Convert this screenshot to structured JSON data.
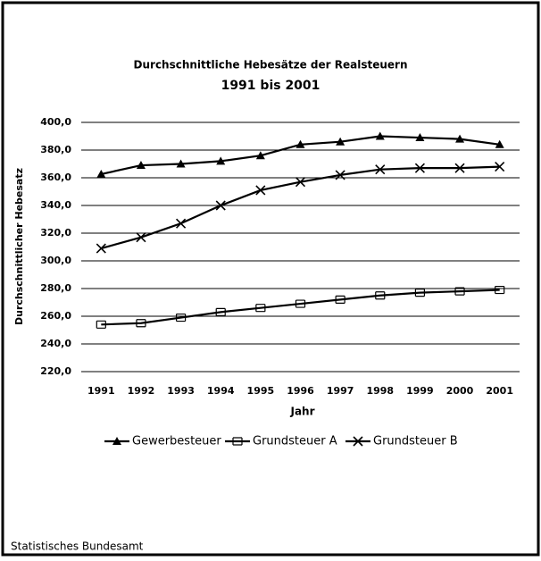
{
  "chart_data": {
    "type": "line",
    "title": "Durchschnittliche Hebesätze der Realsteuern",
    "subtitle": "1991 bis 2001",
    "x_label": "Jahr",
    "y_label": "Durchschnittlicher Hebesatz",
    "source": "Statistisches Bundesamt",
    "categories": [
      "1991",
      "1992",
      "1993",
      "1994",
      "1995",
      "1996",
      "1997",
      "1998",
      "1999",
      "2000",
      "2001"
    ],
    "series": [
      {
        "name": "Gewerbesteuer",
        "color": "#000000",
        "marker": "triangle",
        "values": [
          362.6,
          369,
          370,
          372,
          376,
          384,
          386,
          390,
          389,
          388,
          384
        ]
      },
      {
        "name": "Grundsteuer A",
        "color": "#000000",
        "marker": "box",
        "values": [
          254,
          255,
          259,
          263,
          266,
          269,
          272,
          275,
          277,
          278,
          279
        ]
      },
      {
        "name": "Grundsteuer B",
        "color": "#000000",
        "marker": "star",
        "values": [
          309,
          317,
          327,
          340,
          351,
          357,
          362,
          366,
          367,
          367,
          368
        ]
      }
    ],
    "ylim": [
      220,
      400
    ],
    "yticks": [
      {
        "value": 220,
        "label": "220,0"
      },
      {
        "value": 240,
        "label": "240,0"
      },
      {
        "value": 260,
        "label": "260,0"
      },
      {
        "value": 280,
        "label": "280,0"
      },
      {
        "value": 300,
        "label": "300,0"
      },
      {
        "value": 320,
        "label": "320,0"
      },
      {
        "value": 340,
        "label": "340,0"
      },
      {
        "value": 360,
        "label": "360,0"
      },
      {
        "value": 380,
        "label": "380,0"
      },
      {
        "value": 400,
        "label": "400,0"
      }
    ],
    "grid": true,
    "legend": "bottom"
  }
}
